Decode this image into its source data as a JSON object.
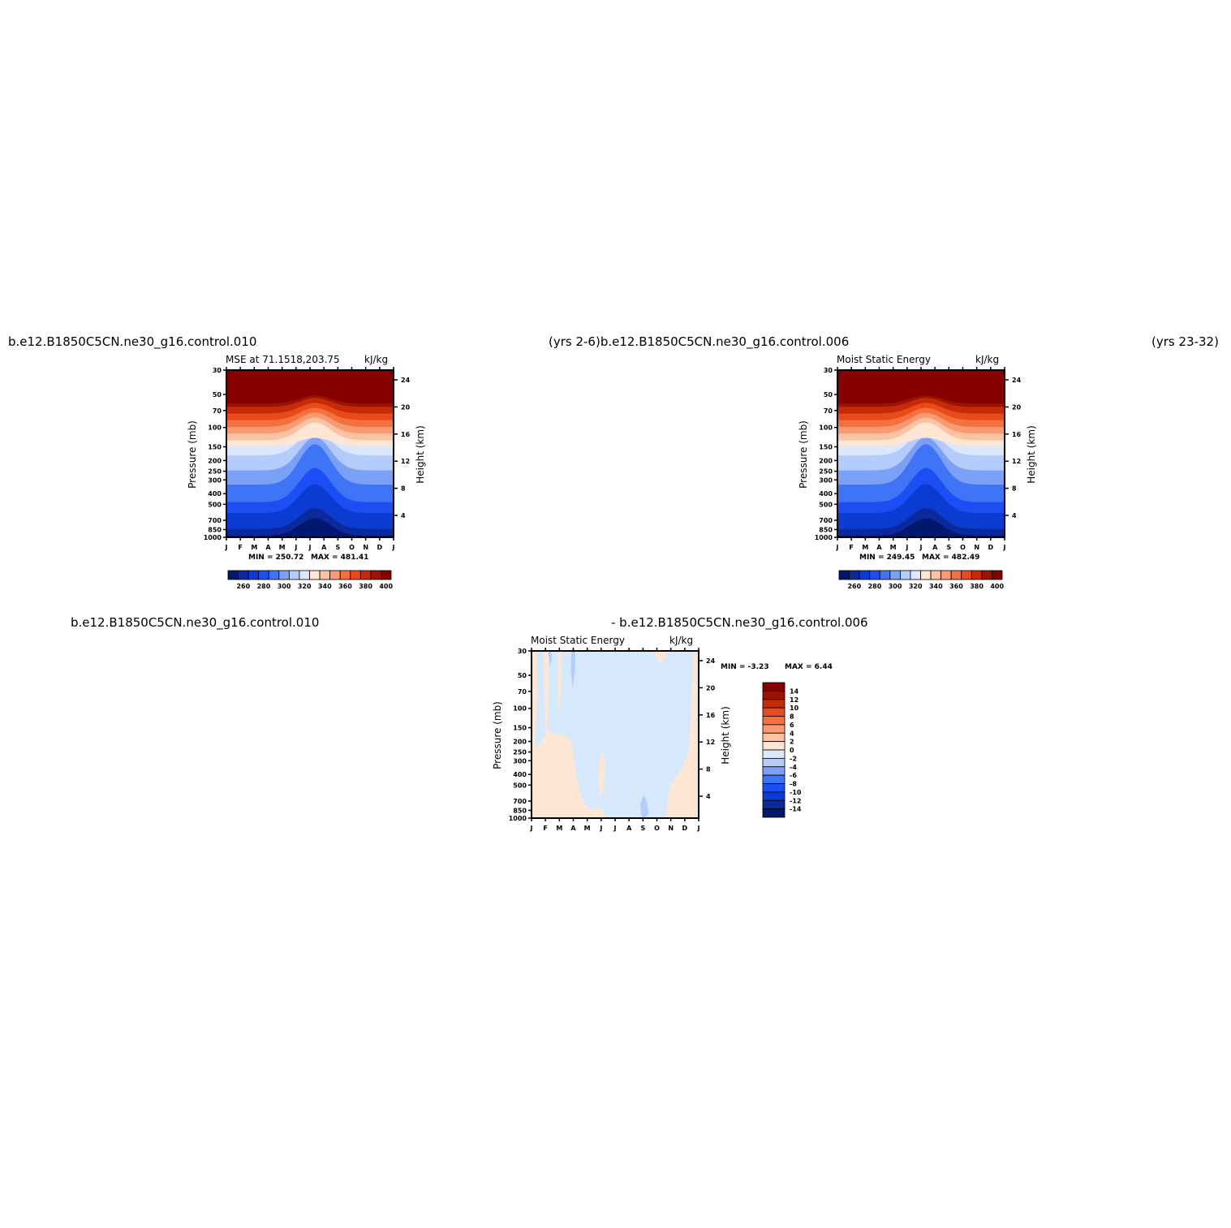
{
  "titles": {
    "top_left_case": "b.e12.B1850C5CN.ne30_g16.control.010",
    "top_mid": "(yrs  2-6)b.e12.B1850C5CN.ne30_g16.control.006",
    "top_right": "(yrs  23-32)",
    "bottom_left_case": "b.e12.B1850C5CN.ne30_g16.control.010",
    "bottom_mid": "-  b.e12.B1850C5CN.ne30_g16.control.006"
  },
  "chart_data": [
    {
      "type": "heatmap",
      "title": "MSE at 71.1518,203.75",
      "units": "kJ/kg",
      "ylabel": "Pressure (mb)",
      "y2label": "Height (km)",
      "months": [
        "J",
        "F",
        "M",
        "A",
        "M",
        "J",
        "J",
        "A",
        "S",
        "O",
        "N",
        "D",
        "J"
      ],
      "pressure_ticks": [
        "30",
        "50",
        "70",
        "100",
        "150",
        "200",
        "250",
        "300",
        "400",
        "500",
        "700",
        "850",
        "1000"
      ],
      "height_ticks": [
        "24",
        "20",
        "16",
        "12",
        "8",
        "4"
      ],
      "min_label": "MIN = 250.72",
      "max_label": "MAX = 481.41",
      "colorbar_labels": [
        "260",
        "280",
        "300",
        "320",
        "340",
        "360",
        "380",
        "400"
      ],
      "colorbar_colors": [
        "#00186c",
        "#0a2a9c",
        "#0c3bd1",
        "#1b4ff5",
        "#3e74f5",
        "#7ba1f7",
        "#b3ccfb",
        "#dbe8fb",
        "#fde6d4",
        "#fbc3a3",
        "#f89a72",
        "#f4703f",
        "#e84a1c",
        "#c62a06",
        "#9b1302",
        "#860000"
      ],
      "contour_fractions": [
        0.01,
        0.05,
        0.145,
        0.21,
        0.315,
        0.4,
        0.49,
        0.545,
        0.58,
        0.62,
        0.66,
        0.7,
        0.74,
        0.78,
        0.8
      ]
    },
    {
      "type": "heatmap",
      "title": "Moist  Static  Energy",
      "units": "kJ/kg",
      "ylabel": "Pressure (mb)",
      "y2label": "Height (km)",
      "months": [
        "J",
        "F",
        "M",
        "A",
        "M",
        "J",
        "J",
        "A",
        "S",
        "O",
        "N",
        "D",
        "J"
      ],
      "pressure_ticks": [
        "30",
        "50",
        "70",
        "100",
        "150",
        "200",
        "250",
        "300",
        "400",
        "500",
        "700",
        "850",
        "1000"
      ],
      "height_ticks": [
        "24",
        "20",
        "16",
        "12",
        "8",
        "4"
      ],
      "min_label": "MIN = 249.45",
      "max_label": "MAX = 482.49",
      "colorbar_labels": [
        "260",
        "280",
        "300",
        "320",
        "340",
        "360",
        "380",
        "400"
      ],
      "colorbar_colors": [
        "#00186c",
        "#0a2a9c",
        "#0c3bd1",
        "#1b4ff5",
        "#3e74f5",
        "#7ba1f7",
        "#b3ccfb",
        "#dbe8fb",
        "#fde6d4",
        "#fbc3a3",
        "#f89a72",
        "#f4703f",
        "#e84a1c",
        "#c62a06",
        "#9b1302",
        "#860000"
      ],
      "contour_fractions": [
        0.01,
        0.05,
        0.145,
        0.21,
        0.315,
        0.4,
        0.49,
        0.545,
        0.58,
        0.62,
        0.66,
        0.7,
        0.74,
        0.78,
        0.8
      ]
    },
    {
      "type": "heatmap",
      "title": "Moist  Static  Energy",
      "units": "kJ/kg",
      "ylabel": "Pressure (mb)",
      "y2label": "Height (km)",
      "months": [
        "J",
        "F",
        "M",
        "A",
        "M",
        "J",
        "J",
        "A",
        "S",
        "O",
        "N",
        "D",
        "J"
      ],
      "pressure_ticks": [
        "30",
        "50",
        "70",
        "100",
        "150",
        "200",
        "250",
        "300",
        "400",
        "500",
        "700",
        "850",
        "1000"
      ],
      "height_ticks": [
        "24",
        "20",
        "16",
        "12",
        "8",
        "4"
      ],
      "min_label": "MIN =    -3.23",
      "max_label": "MAX =     6.44",
      "colorbar_labels": [
        "14",
        "12",
        "10",
        "8",
        "6",
        "4",
        "2",
        "0",
        "-2",
        "-4",
        "-6",
        "-8",
        "-10",
        "-12",
        "-14"
      ],
      "colorbar_colors": [
        "#860000",
        "#9b1302",
        "#c62a06",
        "#e84a1c",
        "#f4703f",
        "#f89a72",
        "#fbc3a3",
        "#fde6d4",
        "#dbe8fb",
        "#b3ccfb",
        "#7ba1f7",
        "#3e74f5",
        "#1b4ff5",
        "#0c3bd1",
        "#0a2a9c",
        "#00186c"
      ],
      "background_color": "#d6e8fc",
      "positive_color": "#fde6d4",
      "negative_color": "#b3ccfb"
    }
  ]
}
